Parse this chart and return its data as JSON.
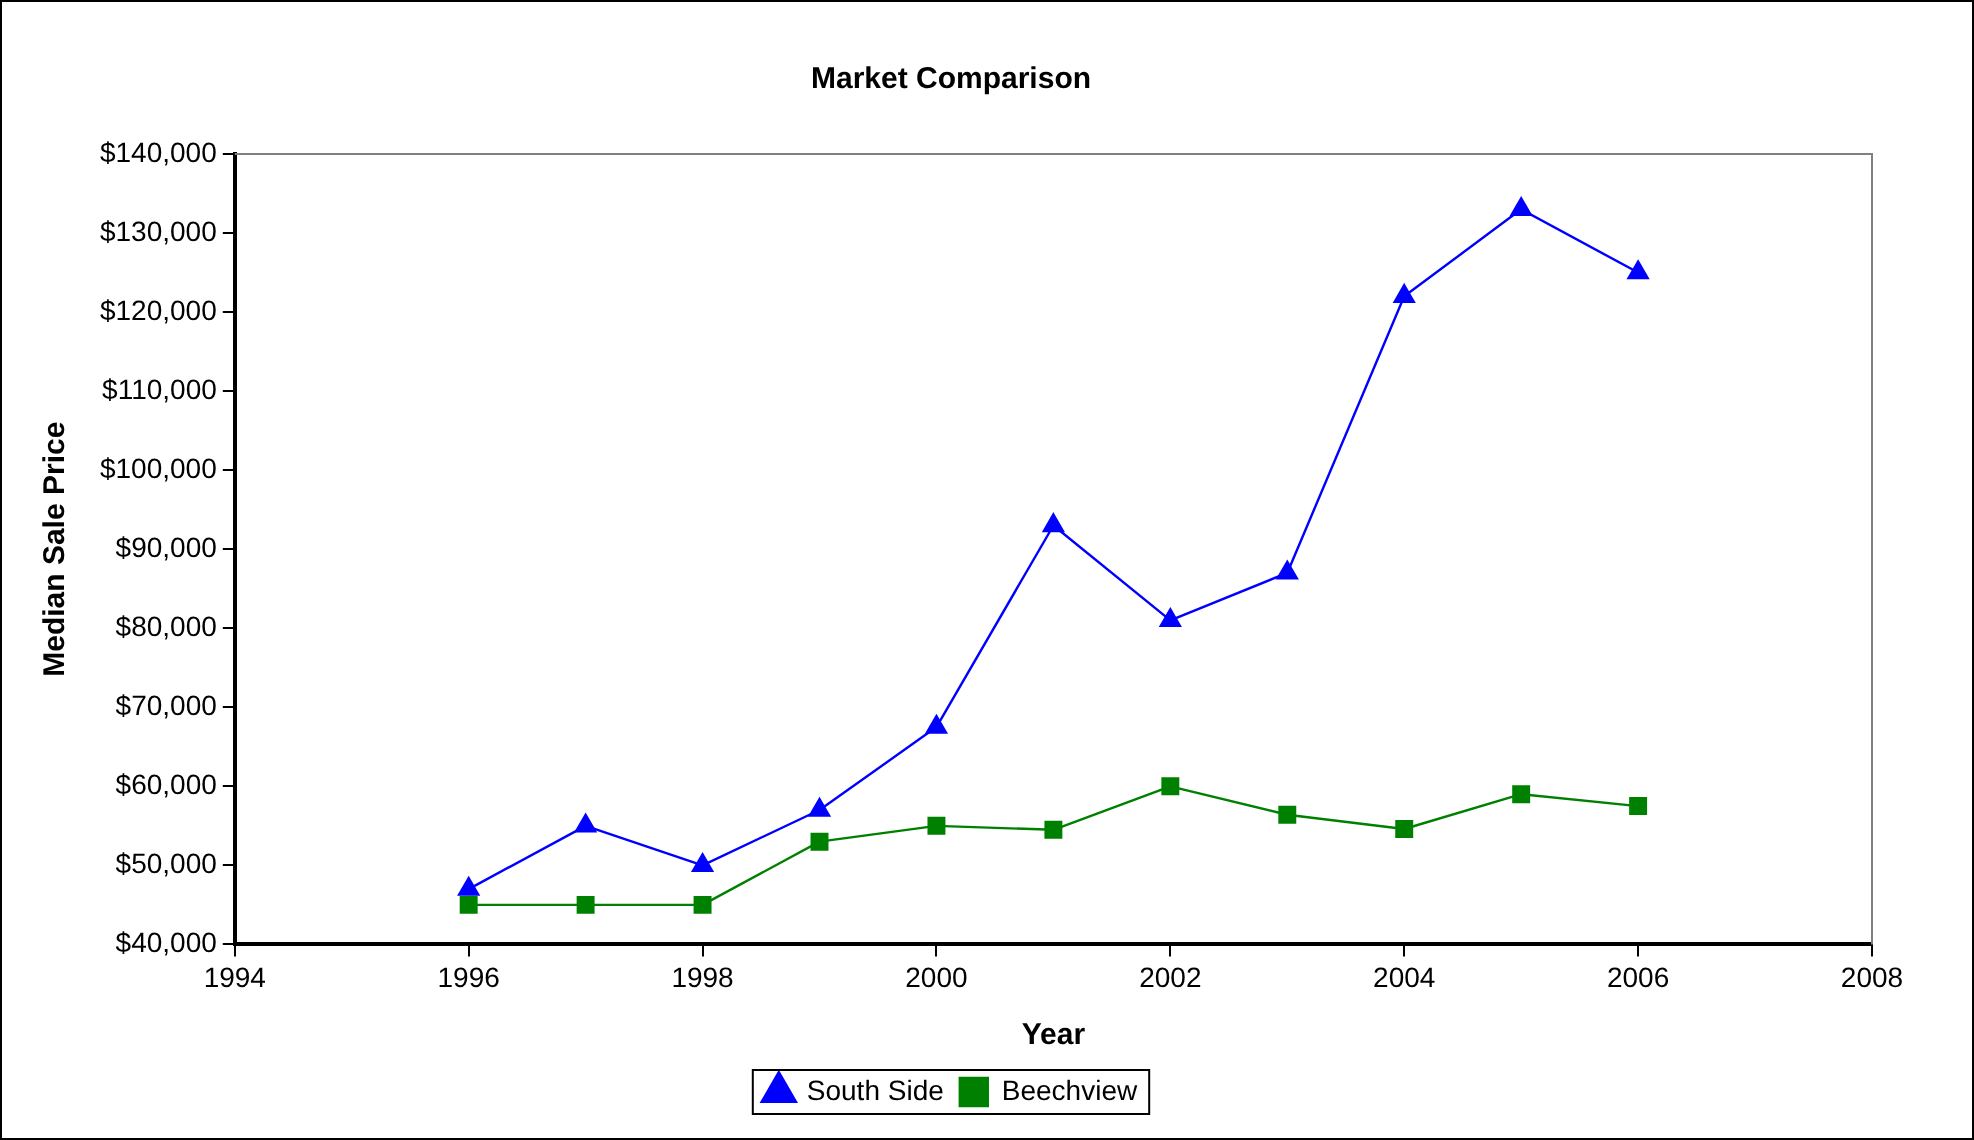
{
  "chart_data": {
    "type": "line",
    "title": "Market Comparison",
    "xlabel": "Year",
    "ylabel": "Median Sale Price",
    "x": [
      1996,
      1997,
      1998,
      1999,
      2000,
      2001,
      2002,
      2003,
      2004,
      2005,
      2006
    ],
    "series": [
      {
        "name": "South Side",
        "color": "#0000ff",
        "marker": "triangle",
        "values": [
          47000,
          55000,
          50000,
          57000,
          67500,
          93000,
          81000,
          87000,
          122000,
          133000,
          125000
        ]
      },
      {
        "name": "Beechview",
        "color": "#008000",
        "marker": "square",
        "values": [
          45000,
          45000,
          45000,
          53000,
          55000,
          54500,
          60000,
          56400,
          54600,
          59000,
          57500
        ]
      }
    ],
    "xlim": [
      1994,
      2008
    ],
    "xticks": [
      1994,
      1996,
      1998,
      2000,
      2002,
      2004,
      2006,
      2008
    ],
    "ylim": [
      40000,
      140000
    ],
    "yticks": [
      {
        "value": 40000,
        "label": "$40,000"
      },
      {
        "value": 50000,
        "label": "$50,000"
      },
      {
        "value": 60000,
        "label": "$60,000"
      },
      {
        "value": 70000,
        "label": "$70,000"
      },
      {
        "value": 80000,
        "label": "$80,000"
      },
      {
        "value": 90000,
        "label": "$90,000"
      },
      {
        "value": 100000,
        "label": "$100,000"
      },
      {
        "value": 110000,
        "label": "$110,000"
      },
      {
        "value": 120000,
        "label": "$120,000"
      },
      {
        "value": 130000,
        "label": "$130,000"
      },
      {
        "value": 140000,
        "label": "$140,000"
      }
    ],
    "legend": "bottom"
  }
}
